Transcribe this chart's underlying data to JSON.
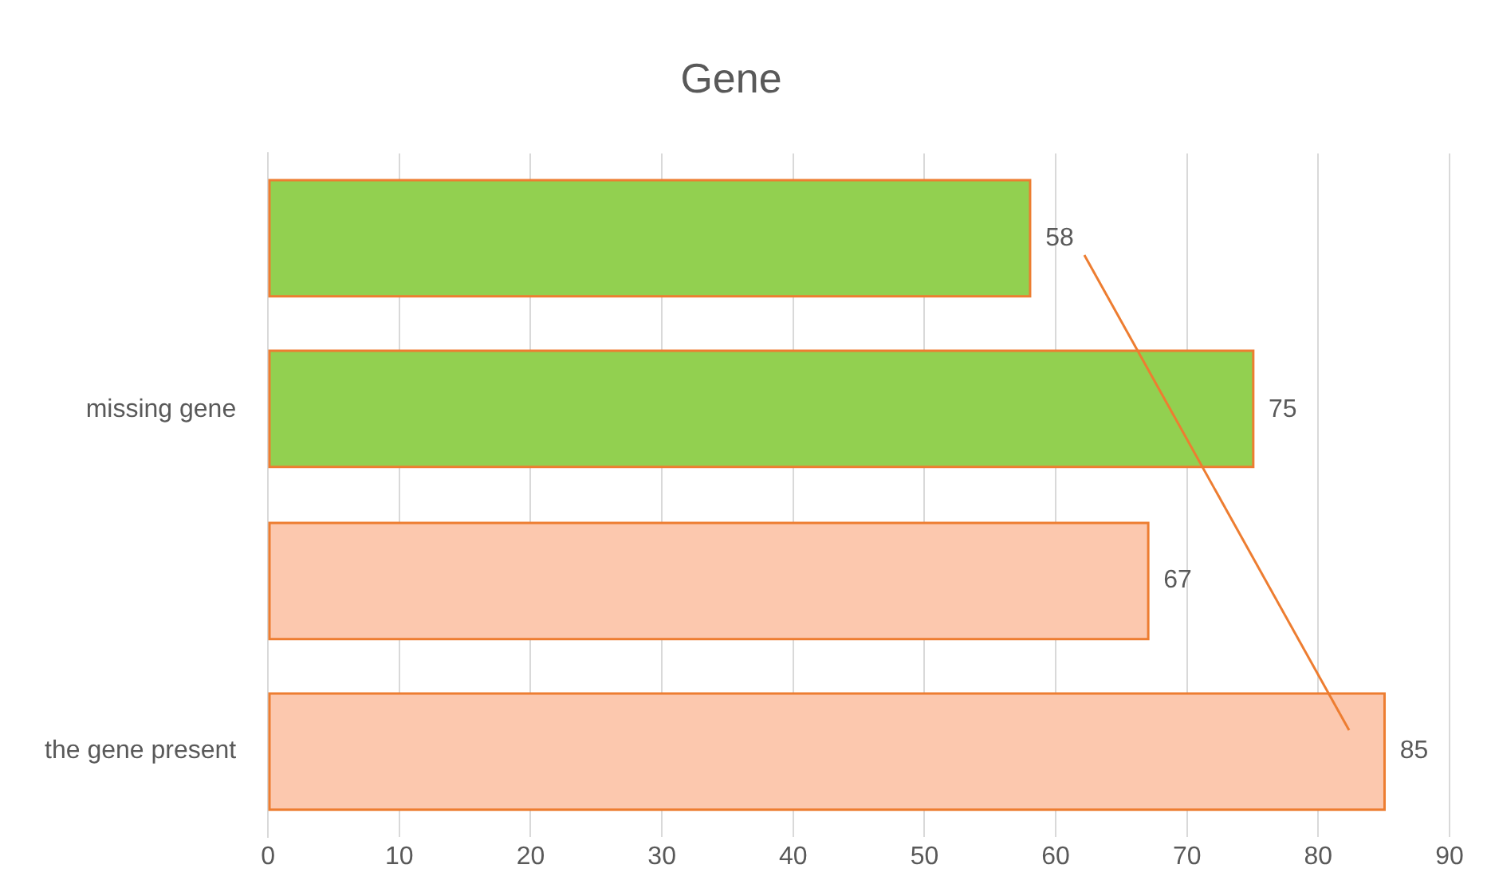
{
  "chart_data": {
    "type": "bar",
    "orientation": "horizontal",
    "title": "Gene",
    "categories": [
      null,
      "missing gene",
      null,
      "the gene present"
    ],
    "values": [
      58,
      75,
      67,
      85
    ],
    "colors": [
      "#92d050",
      "#92d050",
      "#fcc8ae",
      "#fcc8ae"
    ],
    "xlim": [
      0,
      90
    ],
    "xticks": [
      0,
      10,
      20,
      30,
      40,
      50,
      60,
      70,
      80,
      90
    ],
    "grid": "x",
    "data_labels": true,
    "legend": false
  }
}
